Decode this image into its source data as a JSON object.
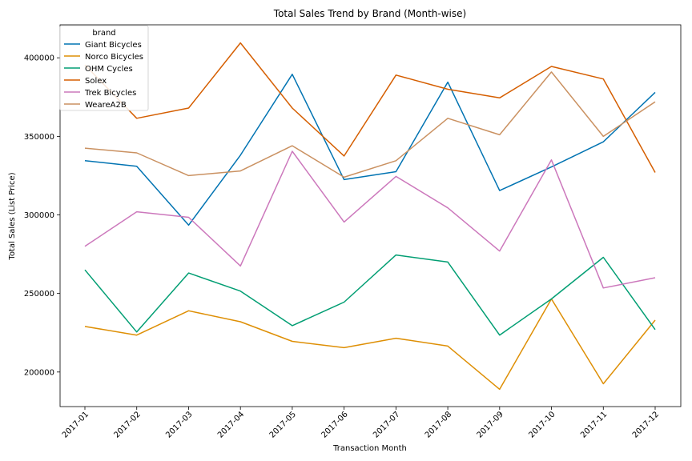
{
  "chart_data": {
    "type": "line",
    "title": "Total Sales Trend by Brand (Month-wise)",
    "xlabel": "Transaction Month",
    "ylabel": "Total Sales (List Price)",
    "categories": [
      "2017-01",
      "2017-02",
      "2017-03",
      "2017-04",
      "2017-05",
      "2017-06",
      "2017-07",
      "2017-08",
      "2017-09",
      "2017-10",
      "2017-11",
      "2017-12"
    ],
    "ylim": [
      178000,
      421000
    ],
    "yticks": [
      200000,
      250000,
      300000,
      350000,
      400000
    ],
    "ytick_labels": [
      "200000",
      "250000",
      "300000",
      "350000",
      "400000"
    ],
    "grid": false,
    "legend": {
      "title": "brand",
      "placement": "top-left"
    },
    "series": [
      {
        "name": "Giant Bicycles",
        "color": "#0173b2",
        "values": [
          334500,
          331000,
          293500,
          338000,
          389500,
          322500,
          327500,
          384500,
          315500,
          330500,
          346500,
          378000
        ]
      },
      {
        "name": "Norco Bicycles",
        "color": "#de8f05",
        "values": [
          229000,
          223500,
          239000,
          232000,
          219500,
          215500,
          221500,
          216500,
          189000,
          246500,
          192500,
          233000
        ]
      },
      {
        "name": "OHM Cycles",
        "color": "#029e73",
        "values": [
          265000,
          225500,
          263000,
          251500,
          229500,
          244500,
          274500,
          270000,
          223500,
          246500,
          273000,
          227000
        ]
      },
      {
        "name": "Solex",
        "color": "#d55e00",
        "values": [
          395500,
          361500,
          368000,
          409500,
          368000,
          337500,
          389000,
          380000,
          374500,
          394500,
          386500,
          327000
        ]
      },
      {
        "name": "Trek Bicycles",
        "color": "#cc78bc",
        "values": [
          280000,
          302000,
          298500,
          267500,
          340500,
          295500,
          324500,
          304500,
          277000,
          335000,
          253500,
          260000
        ]
      },
      {
        "name": "WeareA2B",
        "color": "#ca9161",
        "values": [
          342500,
          339500,
          325000,
          328000,
          344000,
          324000,
          334500,
          361500,
          351000,
          391000,
          350000,
          372000
        ]
      }
    ]
  }
}
